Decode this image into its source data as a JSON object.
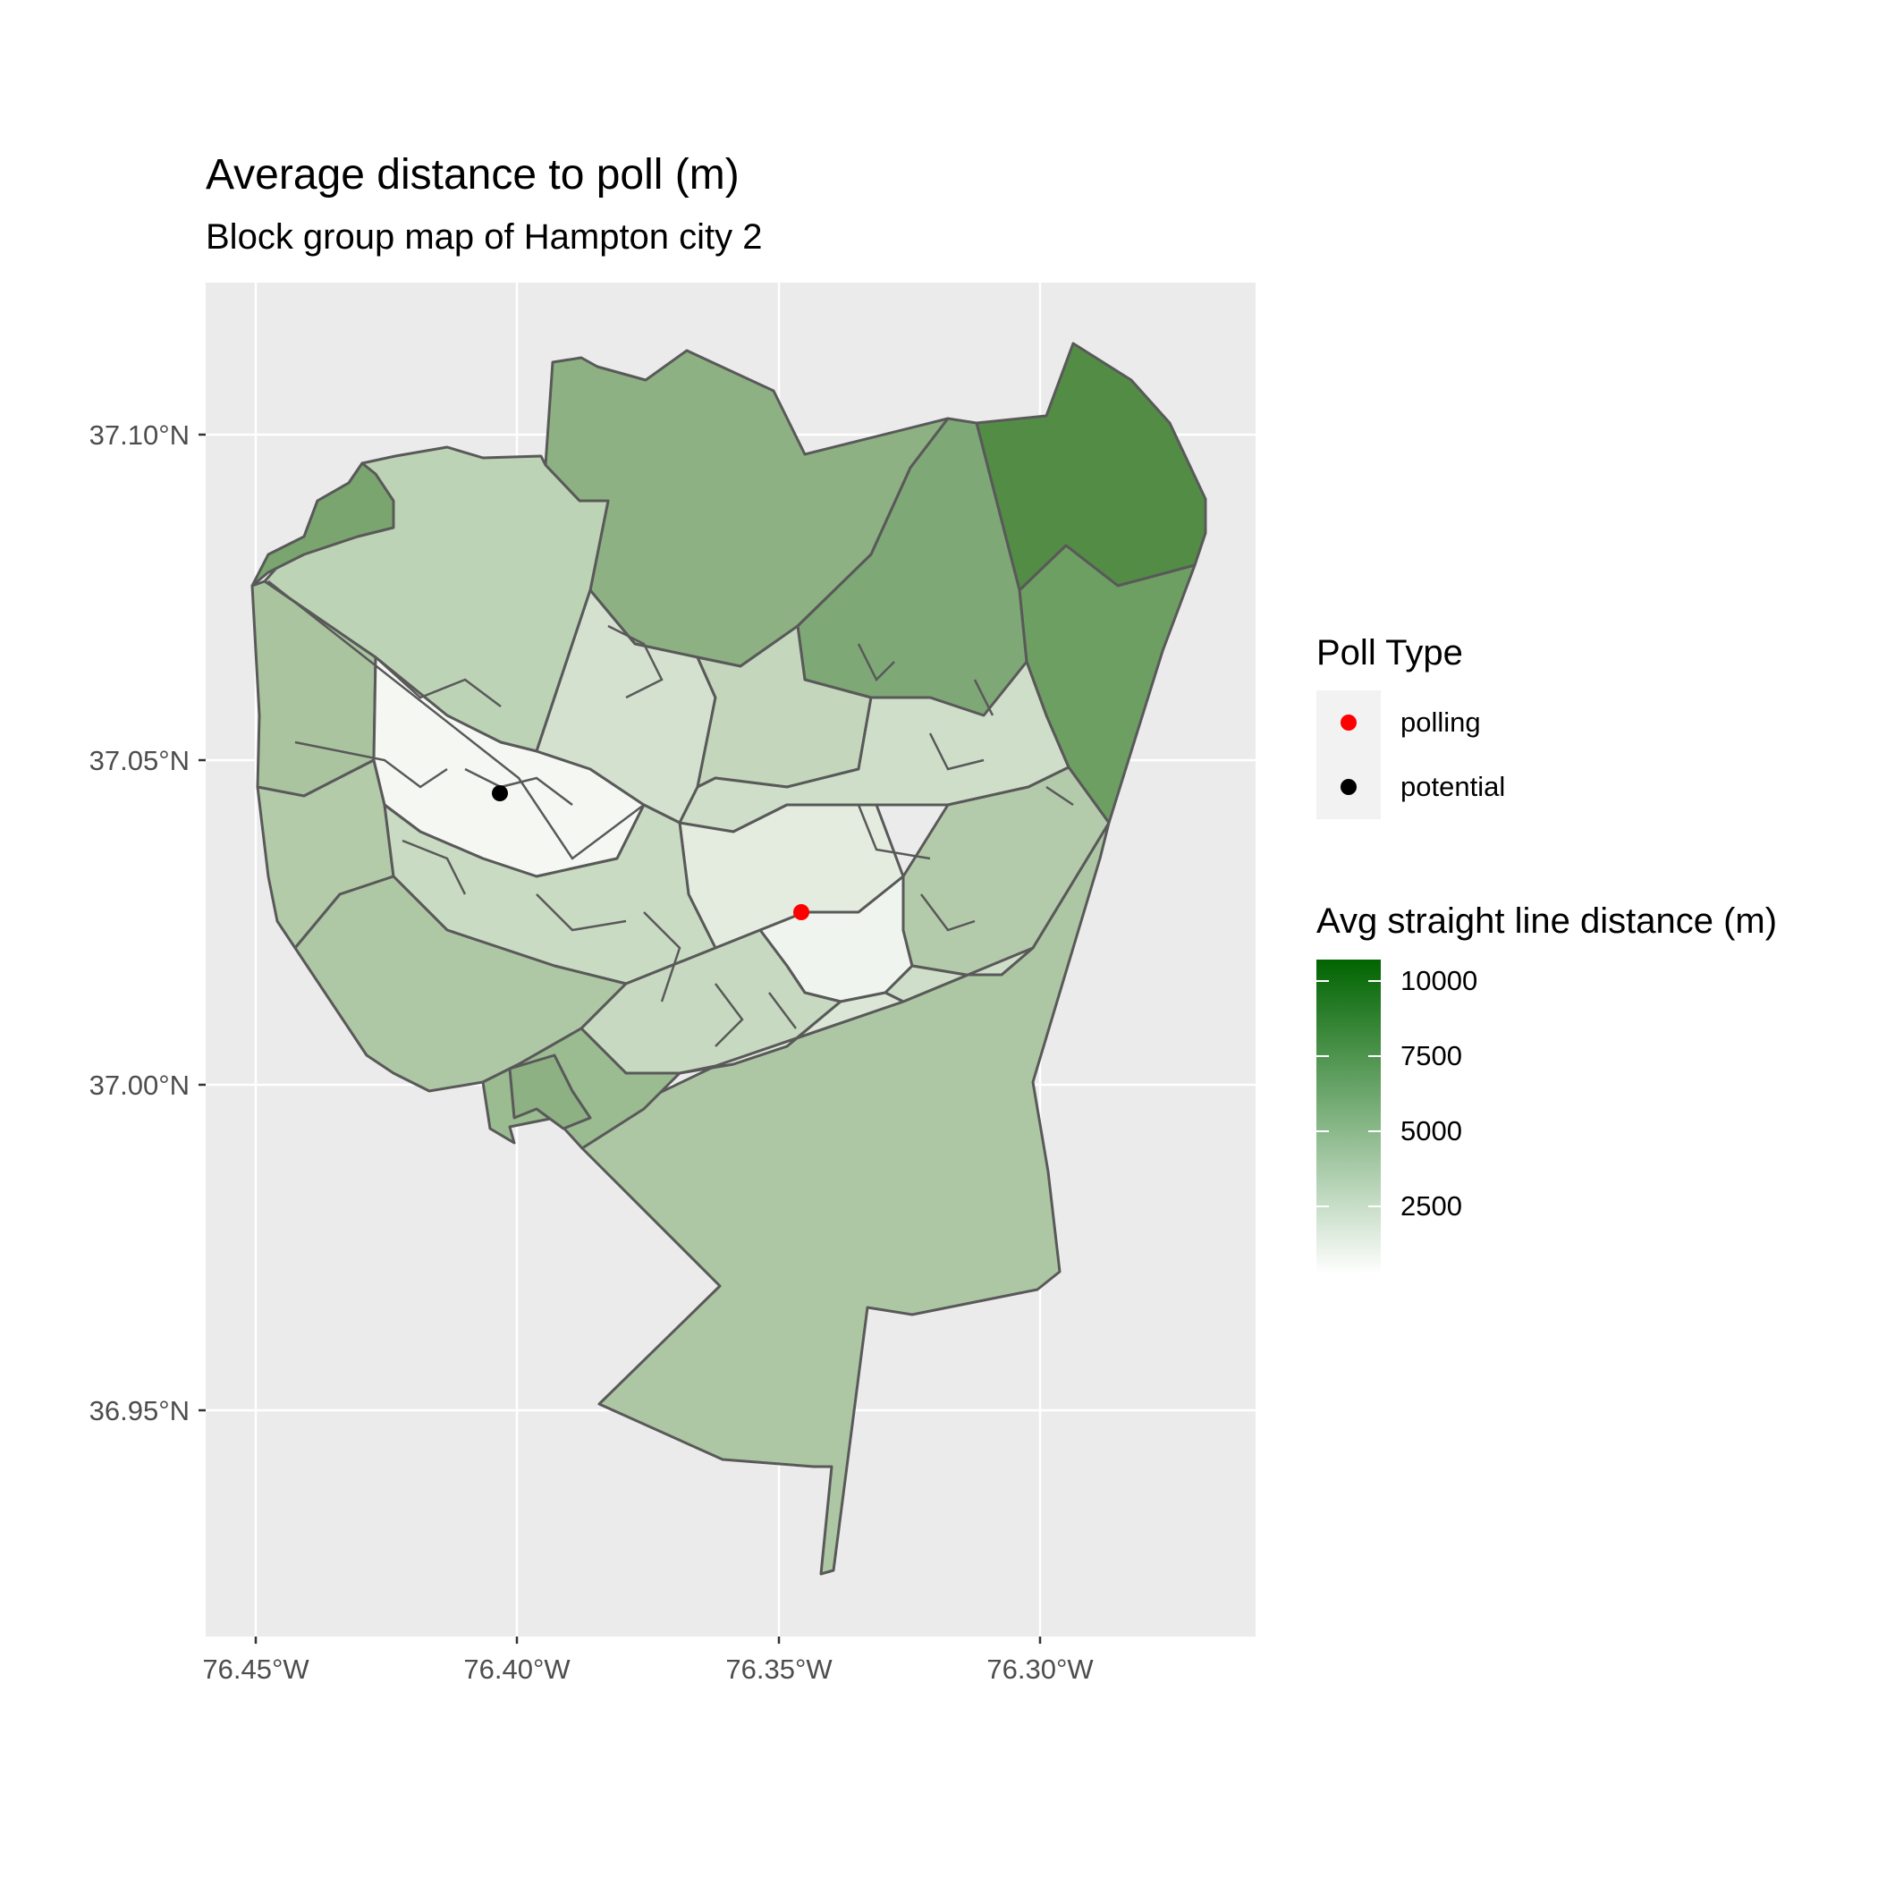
{
  "title": "Average distance to poll (m)",
  "subtitle": "Block group map of Hampton city 2",
  "colors": {
    "panel_bg": "#ebebeb",
    "grid": "#ffffff",
    "border": "#595959",
    "scale_low": "#ffffff",
    "scale_high": "#006400",
    "polling": "#ff0000",
    "potential": "#000000"
  },
  "axes": {
    "x_ticks": [
      "76.45°W",
      "76.40°W",
      "76.35°W",
      "76.30°W"
    ],
    "y_ticks": [
      "37.10°N",
      "37.05°N",
      "37.00°N",
      "36.95°N"
    ]
  },
  "legend": {
    "poll_type": {
      "title": "Poll Type",
      "items": [
        {
          "label": "polling",
          "color": "#ff0000"
        },
        {
          "label": "potential",
          "color": "#000000"
        }
      ]
    },
    "distance": {
      "title": "Avg straight line distance (m)",
      "min": 0,
      "max": 10500,
      "breaks": [
        "10000",
        "7500",
        "5000",
        "2500"
      ]
    }
  },
  "points": [
    {
      "type": "polling",
      "lon": -76.345,
      "lat": 37.027
    },
    {
      "type": "potential",
      "lon": -76.403,
      "lat": 37.045
    }
  ]
}
